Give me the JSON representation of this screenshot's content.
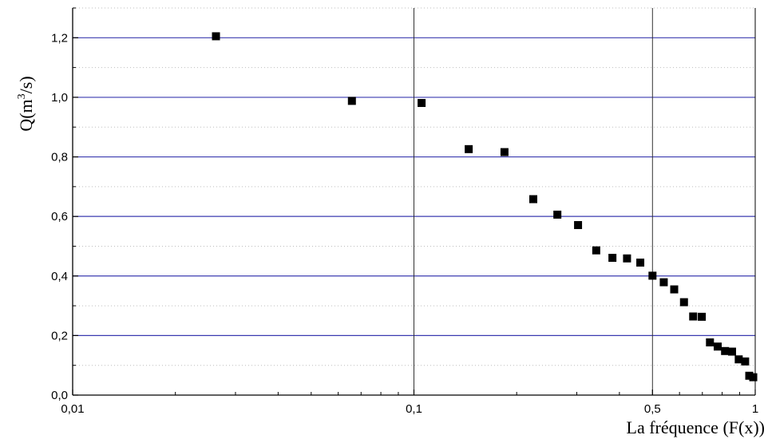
{
  "chart_data": {
    "type": "scatter",
    "x_scale": "log",
    "xlim": [
      0.01,
      1
    ],
    "ylim": [
      0,
      1.3
    ],
    "x_ticks": [
      {
        "value": 0.01,
        "label": "0,01"
      },
      {
        "value": 0.1,
        "label": "0,1"
      },
      {
        "value": 0.5,
        "label": "0,5"
      },
      {
        "value": 1,
        "label": "1"
      }
    ],
    "y_ticks": [
      {
        "value": 0.0,
        "label": "0,0"
      },
      {
        "value": 0.2,
        "label": "0,2"
      },
      {
        "value": 0.4,
        "label": "0,4"
      },
      {
        "value": 0.6,
        "label": "0,6"
      },
      {
        "value": 0.8,
        "label": "0,8"
      },
      {
        "value": 1.0,
        "label": "1,0"
      },
      {
        "value": 1.2,
        "label": "1,2"
      }
    ],
    "xlabel": "La fréquence (F(x))",
    "ylabel_prefix": "Q(m",
    "ylabel_sup": "3",
    "ylabel_suffix": "/s)",
    "grid": {
      "major_y": true,
      "minor_y": true,
      "x_lines_at": [
        0.1,
        0.5
      ]
    },
    "colors": {
      "major_grid": "#3b3bb0",
      "minor_grid": "#bdbdbd",
      "vertical_grid": "#333333",
      "marker": "#000000"
    },
    "points": [
      {
        "x": 0.0263,
        "y": 1.205
      },
      {
        "x": 0.0658,
        "y": 0.988
      },
      {
        "x": 0.1053,
        "y": 0.981
      },
      {
        "x": 0.1447,
        "y": 0.826
      },
      {
        "x": 0.1842,
        "y": 0.816
      },
      {
        "x": 0.2237,
        "y": 0.658
      },
      {
        "x": 0.2632,
        "y": 0.606
      },
      {
        "x": 0.3026,
        "y": 0.571
      },
      {
        "x": 0.3421,
        "y": 0.486
      },
      {
        "x": 0.3816,
        "y": 0.461
      },
      {
        "x": 0.4211,
        "y": 0.459
      },
      {
        "x": 0.4605,
        "y": 0.445
      },
      {
        "x": 0.5,
        "y": 0.401
      },
      {
        "x": 0.5395,
        "y": 0.379
      },
      {
        "x": 0.5789,
        "y": 0.355
      },
      {
        "x": 0.6184,
        "y": 0.312
      },
      {
        "x": 0.6579,
        "y": 0.264
      },
      {
        "x": 0.6974,
        "y": 0.263
      },
      {
        "x": 0.7368,
        "y": 0.177
      },
      {
        "x": 0.7763,
        "y": 0.163
      },
      {
        "x": 0.8158,
        "y": 0.148
      },
      {
        "x": 0.8553,
        "y": 0.146
      },
      {
        "x": 0.8947,
        "y": 0.12
      },
      {
        "x": 0.9342,
        "y": 0.113
      },
      {
        "x": 0.9605,
        "y": 0.065
      },
      {
        "x": 0.9868,
        "y": 0.06
      }
    ]
  }
}
